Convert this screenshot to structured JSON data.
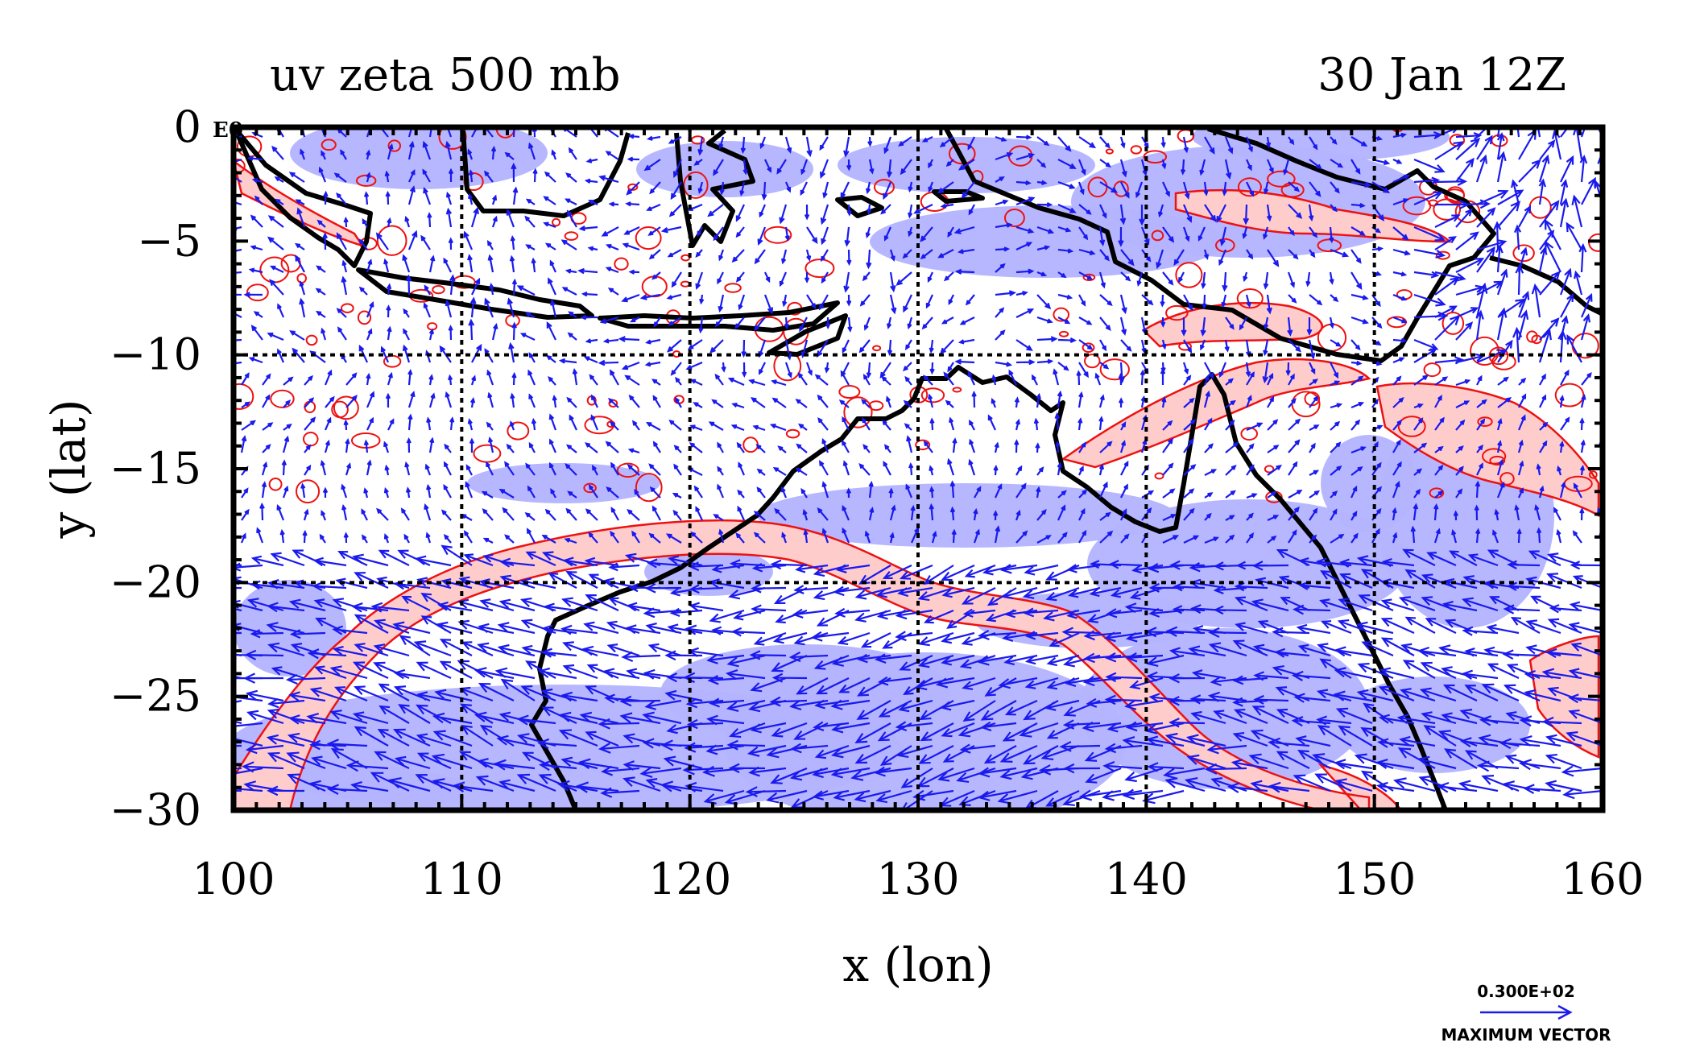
{
  "chart_data": {
    "type": "map",
    "title": "uv zeta 500 mb",
    "date_label": "30 Jan 12Z",
    "xlabel": "x (lon)",
    "ylabel": "y (lat)",
    "corner_label": "E0",
    "xlim": [
      100,
      160
    ],
    "ylim": [
      -30,
      0
    ],
    "xticks": [
      100,
      110,
      120,
      130,
      140,
      150,
      160
    ],
    "yticks": [
      0,
      -5,
      -10,
      -15,
      -20,
      -25,
      -30
    ],
    "xtick_labels": [
      "100",
      "110",
      "120",
      "130",
      "140",
      "150",
      "160"
    ],
    "ytick_labels": [
      "0",
      "−5",
      "−10",
      "−15",
      "−20",
      "−25",
      "−30"
    ],
    "grid": true,
    "gridlines_x": [
      110,
      120,
      130,
      140,
      150
    ],
    "gridlines_y": [
      -10,
      -20
    ],
    "vector_legend": {
      "value_label": "0.300E+02",
      "caption": "MAXIMUM VECTOR"
    },
    "colors": {
      "positive_shade": "#ffcccc",
      "positive_contour": "#ee1111",
      "negative_shade": "#b3b3ff",
      "vectors": "#1a1aee",
      "coastline": "#000000",
      "gridline": "#000000"
    }
  }
}
